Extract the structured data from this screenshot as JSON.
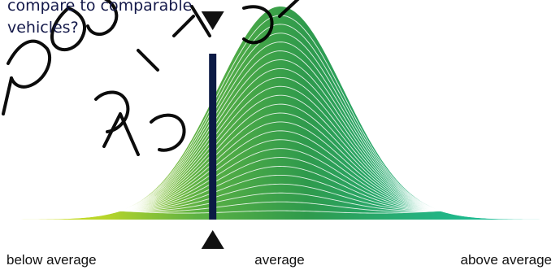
{
  "question": {
    "lines": [
      "compare to comparable",
      "vehicles?"
    ]
  },
  "scale": {
    "labels": {
      "left": "below average",
      "center": "average",
      "right": "above average"
    },
    "marker_position_fraction": 0.377,
    "marker_color": "#0b1a45"
  },
  "watermark": {
    "text": "price validation sample",
    "color": "#000000"
  },
  "colors": {
    "curve_left": "#d8e21a",
    "curve_mid": "#2e9a4c",
    "curve_right": "#13c7a8",
    "line_stroke": "#ffffff",
    "text": "#14194a"
  }
}
